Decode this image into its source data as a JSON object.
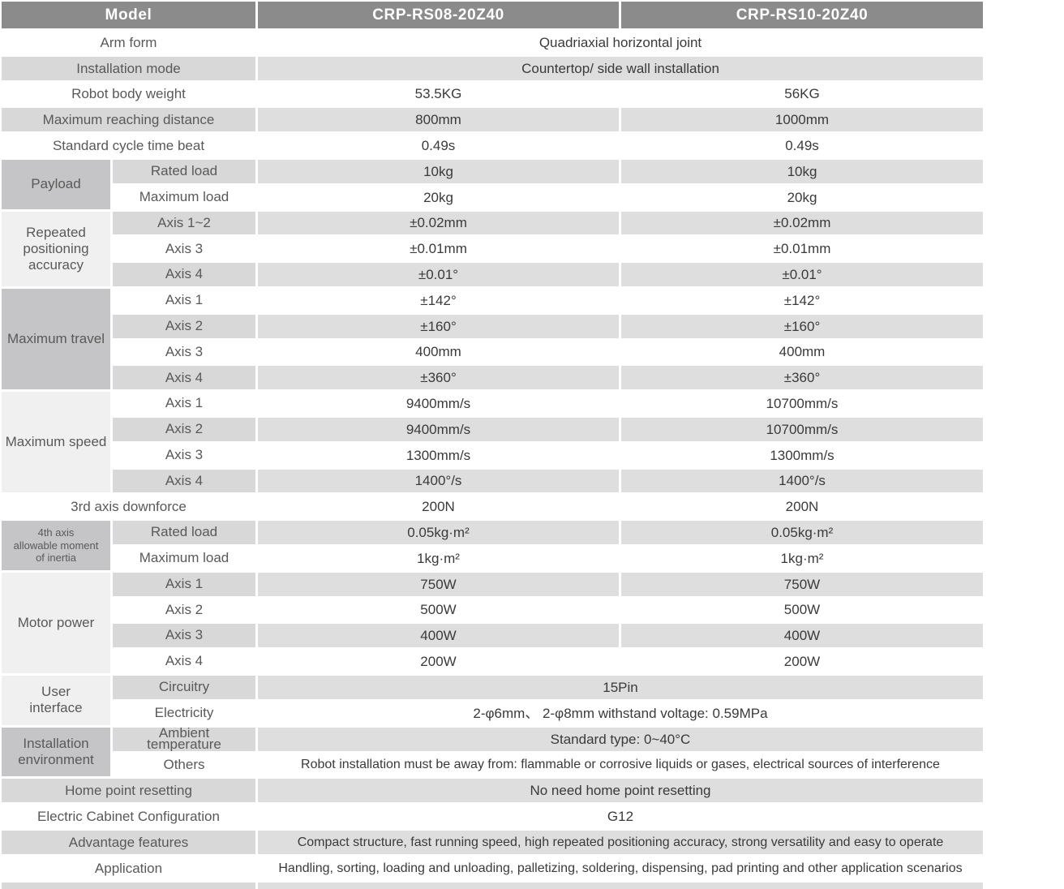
{
  "title": "Robot specification comparison table",
  "colors": {
    "header_bg": "#8b8b8b",
    "header_text": "#ffffff",
    "row_label_gray": "#d8d8d9",
    "row_value_gray": "#dedede",
    "group_medium": "#c5c5c7",
    "group_light": "#f0f0f0",
    "label_text": "#595959",
    "value_text": "#3a3a3a",
    "gap_white": "#ffffff"
  },
  "header": {
    "model_label": "Model",
    "model_a": "CRP-RS08-20Z40",
    "model_b": "CRP-RS10-20Z40"
  },
  "sections": [
    {
      "type": "simple",
      "label": "Arm form",
      "span_value": "Quadriaxial horizontal joint"
    },
    {
      "type": "simple",
      "label": "Installation mode",
      "span_value": "Countertop/ side wall installation"
    },
    {
      "type": "simple",
      "label": "Robot body weight",
      "values": [
        "53.5KG",
        "56KG"
      ]
    },
    {
      "type": "simple",
      "label": "Maximum reaching distance",
      "values": [
        "800mm",
        "1000mm"
      ]
    },
    {
      "type": "simple",
      "label": "Standard cycle time beat",
      "values": [
        "0.49s",
        "0.49s"
      ]
    },
    {
      "type": "group",
      "label": "Payload",
      "shade": "medium",
      "rows": [
        {
          "sub": "Rated load",
          "values": [
            "10kg",
            "10kg"
          ]
        },
        {
          "sub": "Maximum load",
          "values": [
            "20kg",
            "20kg"
          ]
        }
      ]
    },
    {
      "type": "group",
      "label": "Repeated\npositioning\naccuracy",
      "shade": "light",
      "rows": [
        {
          "sub": "Axis 1~2",
          "values": [
            "±0.02mm",
            "±0.02mm"
          ]
        },
        {
          "sub": "Axis 3",
          "values": [
            "±0.01mm",
            "±0.01mm"
          ]
        },
        {
          "sub": "Axis 4",
          "values": [
            "±0.01°",
            "±0.01°"
          ]
        }
      ]
    },
    {
      "type": "group",
      "label": "Maximum travel",
      "shade": "medium",
      "rows": [
        {
          "sub": "Axis 1",
          "values": [
            "±142°",
            "±142°"
          ]
        },
        {
          "sub": "Axis 2",
          "values": [
            "±160°",
            "±160°"
          ]
        },
        {
          "sub": "Axis 3",
          "values": [
            "400mm",
            "400mm"
          ]
        },
        {
          "sub": "Axis 4",
          "values": [
            "±360°",
            "±360°"
          ]
        }
      ]
    },
    {
      "type": "group",
      "label": "Maximum speed",
      "shade": "light",
      "rows": [
        {
          "sub": "Axis 1",
          "values": [
            "9400mm/s",
            "10700mm/s"
          ]
        },
        {
          "sub": "Axis 2",
          "values": [
            "9400mm/s",
            "10700mm/s"
          ]
        },
        {
          "sub": "Axis 3",
          "values": [
            "1300mm/s",
            "1300mm/s"
          ]
        },
        {
          "sub": "Axis 4",
          "values": [
            "1400°/s",
            "1400°/s"
          ]
        }
      ]
    },
    {
      "type": "simple",
      "label": "3rd axis downforce",
      "values": [
        "200N",
        "200N"
      ]
    },
    {
      "type": "group",
      "label": "4th axis\nallowable moment\nof inertia",
      "shade": "medium",
      "small_label": true,
      "rows": [
        {
          "sub": "Rated load",
          "values": [
            "0.05kg·m²",
            "0.05kg·m²"
          ]
        },
        {
          "sub": "Maximum load",
          "values": [
            "1kg·m²",
            "1kg·m²"
          ]
        }
      ]
    },
    {
      "type": "group",
      "label": "Motor power",
      "shade": "light",
      "rows": [
        {
          "sub": "Axis 1",
          "values": [
            "750W",
            "750W"
          ]
        },
        {
          "sub": "Axis 2",
          "values": [
            "500W",
            "500W"
          ]
        },
        {
          "sub": "Axis 3",
          "values": [
            "400W",
            "400W"
          ]
        },
        {
          "sub": "Axis 4",
          "values": [
            "200W",
            "200W"
          ]
        }
      ]
    },
    {
      "type": "group",
      "label": "User\ninterface",
      "shade": "light",
      "rows": [
        {
          "sub": "Circuitry",
          "span_value": "15Pin"
        },
        {
          "sub": "Electricity",
          "span_value": "2-φ6mm、 2-φ8mm withstand voltage: 0.59MPa"
        }
      ]
    },
    {
      "type": "group",
      "label": "Installation\nenvironment",
      "shade": "medium",
      "rows": [
        {
          "sub": "Ambient\ntemperature",
          "span_value": "Standard type:  0~40°C"
        },
        {
          "sub": "Others",
          "span_value": "Robot installation must be away from: flammable or corrosive liquids or gases, electrical sources of interference",
          "small": true
        }
      ]
    },
    {
      "type": "simple",
      "label": "Home point resetting",
      "span_value": "No need home point resetting"
    },
    {
      "type": "simple",
      "label": "Electric Cabinet Configuration",
      "span_value": "G12"
    },
    {
      "type": "simple",
      "label": "Advantage features",
      "span_value": "Compact structure, fast running speed, high repeated positioning accuracy, strong versatility and easy to operate",
      "small": true
    },
    {
      "type": "simple",
      "label": "Application",
      "span_value": "Handling, sorting, loading and unloading, palletizing, soldering, dispensing, pad printing and other application scenarios",
      "small": true
    },
    {
      "type": "simple",
      "label": "",
      "span_value": ""
    }
  ]
}
